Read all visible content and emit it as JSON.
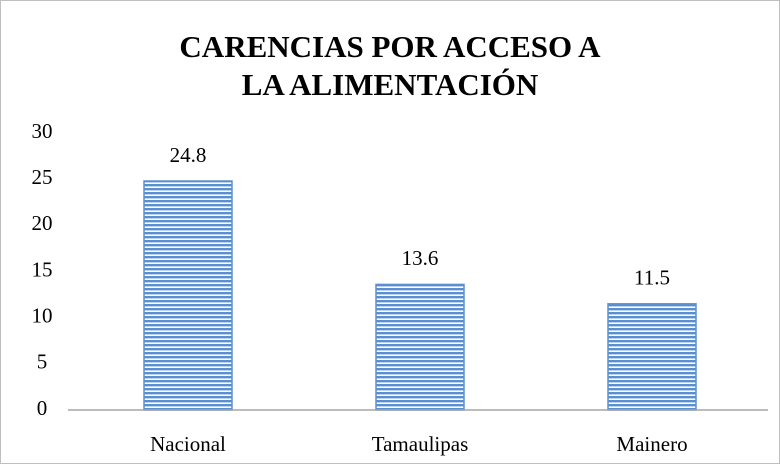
{
  "chart_data": {
    "type": "bar",
    "title": "CARENCIAS POR ACCESO A LA ALIMENTACIÓN",
    "categories": [
      "Nacional",
      "Tamaulipas",
      "Mainero"
    ],
    "values": [
      24.8,
      13.6,
      11.5
    ],
    "color": "#5b8fd0",
    "ylim": [
      0,
      30
    ],
    "yticks": [
      0,
      5,
      10,
      15,
      20,
      25,
      30
    ],
    "grid": false
  }
}
